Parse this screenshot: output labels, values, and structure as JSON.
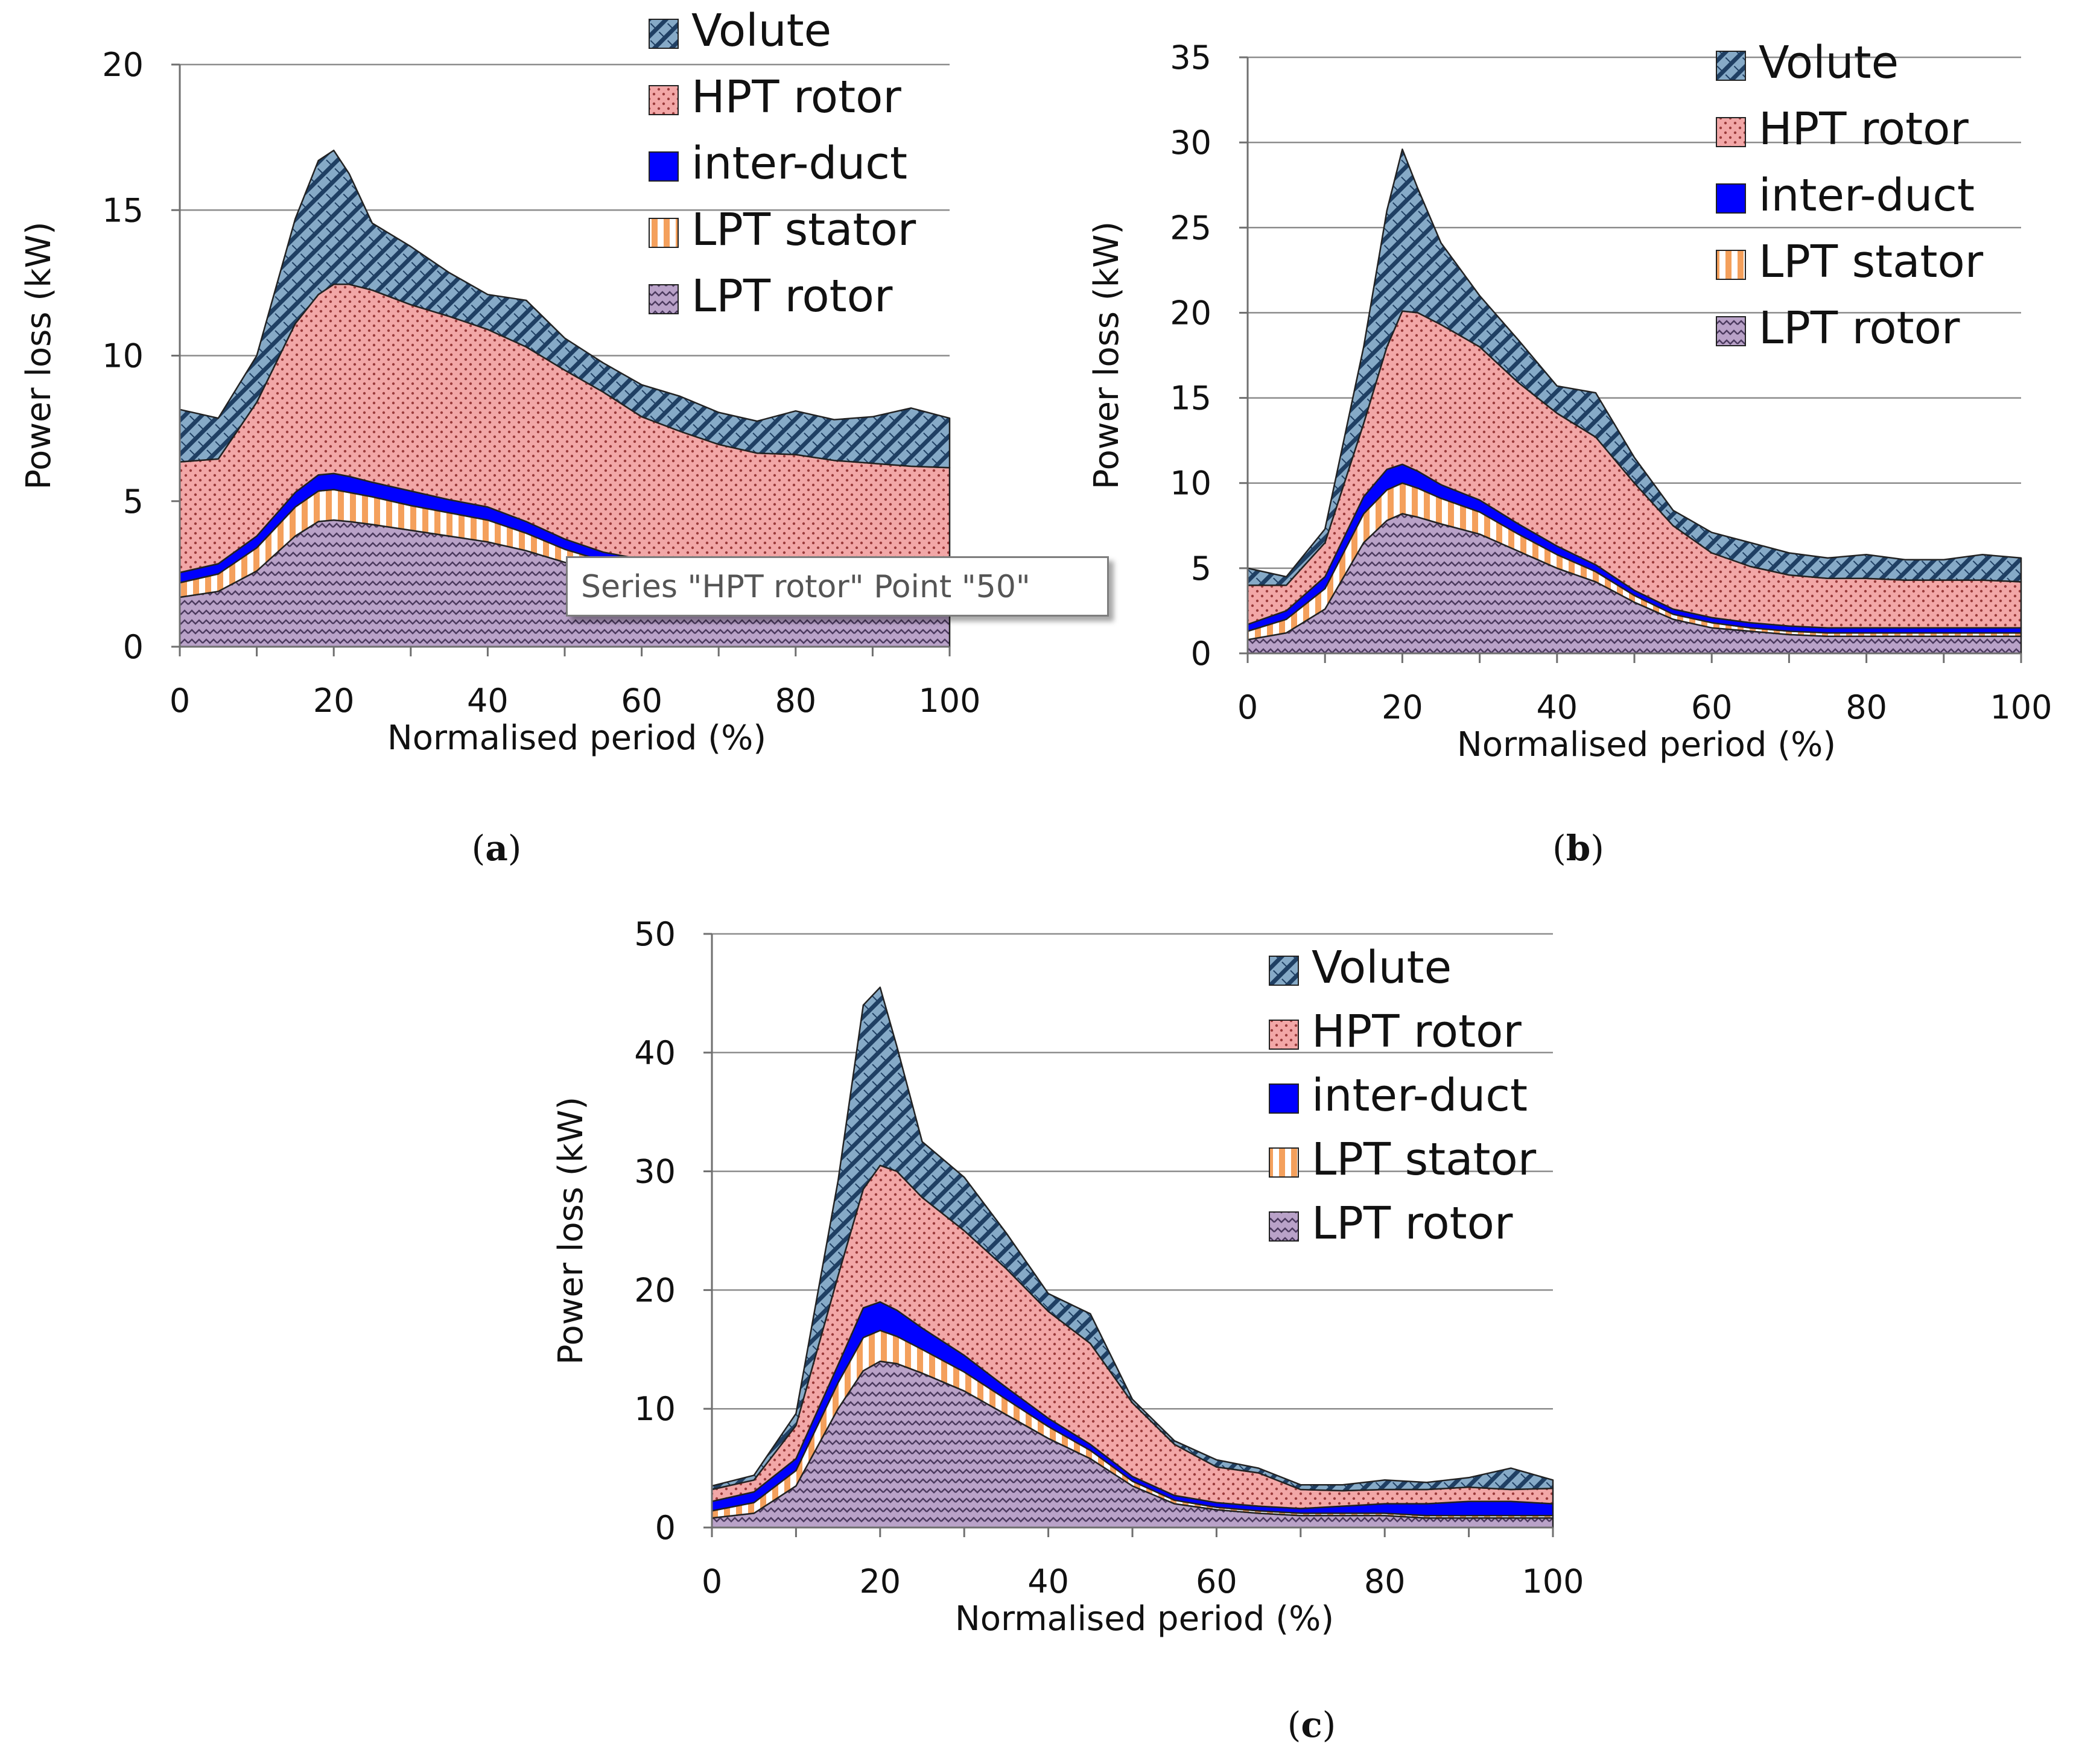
{
  "colors": {
    "volute": "#86aac7",
    "volute_hatch": "#1f3f63",
    "hpt_rotor": "#f2a7a7",
    "hpt_rotor_dots": "#9a3b3b",
    "inter_duct": "#0000ff",
    "lpt_stator_stripe": "#f4a05c",
    "lpt_stator_bg": "#ffffff",
    "lpt_rotor": "#b9a2c8",
    "lpt_rotor_wave": "#4b3a5e",
    "grid": "#8c8c8c",
    "axis": "#6f6f6f"
  },
  "icons": {
    "volute": "diagonal-hatch-swatch",
    "hpt_rotor": "dotted-swatch",
    "inter_duct": "solid-blue-swatch",
    "lpt_stator": "vertical-stripe-swatch",
    "lpt_rotor": "zigzag-swatch"
  },
  "tooltip": "Series \"HPT rotor\" Point \"50\"",
  "chart_data": [
    {
      "type": "area",
      "stacked": true,
      "caption_letter": "a",
      "caption_open": "(",
      "caption_close": ")",
      "xlabel": "Normalised period (%)",
      "ylabel": "Power loss (kW)",
      "xlim": [
        0,
        100
      ],
      "ylim": [
        0,
        20
      ],
      "xticks": [
        "0",
        "20",
        "40",
        "60",
        "80",
        "100"
      ],
      "yticks": [
        "0",
        "5",
        "10",
        "15",
        "20"
      ],
      "grid": "horizontal",
      "legend_position": "top-right",
      "x": [
        0,
        5,
        10,
        15,
        18,
        20,
        22,
        25,
        30,
        35,
        40,
        45,
        50,
        55,
        60,
        65,
        70,
        75,
        80,
        85,
        90,
        95,
        100
      ],
      "series": [
        {
          "name": "LPT rotor",
          "values": [
            1.7,
            1.9,
            2.6,
            3.8,
            4.3,
            4.35,
            4.3,
            4.2,
            4.0,
            3.8,
            3.6,
            3.3,
            2.9,
            2.6,
            2.4,
            2.3,
            2.2,
            2.1,
            2.1,
            2.0,
            2.0,
            2.0,
            2.0
          ]
        },
        {
          "name": "LPT stator",
          "values": [
            0.5,
            0.6,
            0.8,
            1.0,
            1.05,
            1.05,
            1.0,
            0.95,
            0.85,
            0.8,
            0.75,
            0.6,
            0.45,
            0.35,
            0.3,
            0.3,
            0.25,
            0.25,
            0.25,
            0.25,
            0.25,
            0.25,
            0.25
          ]
        },
        {
          "name": "inter-duct",
          "values": [
            0.35,
            0.35,
            0.4,
            0.5,
            0.55,
            0.55,
            0.55,
            0.5,
            0.5,
            0.45,
            0.45,
            0.4,
            0.35,
            0.3,
            0.3,
            0.3,
            0.3,
            0.3,
            0.3,
            0.3,
            0.3,
            0.3,
            0.3
          ]
        },
        {
          "name": "HPT rotor",
          "values": [
            3.8,
            3.6,
            4.6,
            5.8,
            6.2,
            6.5,
            6.6,
            6.6,
            6.4,
            6.3,
            6.1,
            6.0,
            5.8,
            5.5,
            4.9,
            4.5,
            4.2,
            4.0,
            3.95,
            3.85,
            3.75,
            3.65,
            3.6
          ]
        },
        {
          "name": "Volute",
          "values": [
            1.8,
            1.4,
            1.6,
            3.6,
            4.6,
            4.6,
            3.8,
            2.3,
            2.0,
            1.5,
            1.2,
            1.6,
            1.1,
            1.0,
            1.1,
            1.2,
            1.1,
            1.1,
            1.5,
            1.4,
            1.6,
            2.0,
            1.7
          ]
        }
      ]
    },
    {
      "type": "area",
      "stacked": true,
      "caption_letter": "b",
      "caption_open": "(",
      "caption_close": ")",
      "xlabel": "Normalised period (%)",
      "ylabel": "Power loss (kW)",
      "xlim": [
        0,
        100
      ],
      "ylim": [
        0,
        35
      ],
      "xticks": [
        "0",
        "20",
        "40",
        "60",
        "80",
        "100"
      ],
      "yticks": [
        "0",
        "5",
        "10",
        "15",
        "20",
        "25",
        "30",
        "35"
      ],
      "grid": "horizontal",
      "legend_position": "top-right",
      "x": [
        0,
        5,
        10,
        15,
        18,
        20,
        22,
        25,
        30,
        35,
        40,
        45,
        50,
        55,
        60,
        65,
        70,
        75,
        80,
        85,
        90,
        95,
        100
      ],
      "series": [
        {
          "name": "LPT rotor",
          "values": [
            0.8,
            1.2,
            2.6,
            6.5,
            7.8,
            8.2,
            8.0,
            7.6,
            7.0,
            6.0,
            5.0,
            4.2,
            3.0,
            2.0,
            1.5,
            1.3,
            1.1,
            1.0,
            1.0,
            1.0,
            1.0,
            1.0,
            1.0
          ]
        },
        {
          "name": "LPT stator",
          "values": [
            0.5,
            0.8,
            1.2,
            1.7,
            1.8,
            1.8,
            1.7,
            1.5,
            1.3,
            1.0,
            0.8,
            0.6,
            0.4,
            0.3,
            0.3,
            0.2,
            0.2,
            0.2,
            0.2,
            0.2,
            0.2,
            0.2,
            0.2
          ]
        },
        {
          "name": "inter-duct",
          "values": [
            0.4,
            0.5,
            0.7,
            1.0,
            1.2,
            1.1,
            1.0,
            0.8,
            0.7,
            0.6,
            0.5,
            0.4,
            0.3,
            0.3,
            0.3,
            0.3,
            0.3,
            0.3,
            0.3,
            0.3,
            0.3,
            0.3,
            0.3
          ]
        },
        {
          "name": "HPT rotor",
          "values": [
            2.3,
            1.5,
            2.0,
            4.3,
            7.2,
            9.0,
            9.3,
            9.4,
            9.0,
            8.3,
            7.8,
            7.5,
            6.3,
            4.9,
            3.8,
            3.3,
            3.0,
            2.9,
            2.9,
            2.8,
            2.8,
            2.8,
            2.7
          ]
        },
        {
          "name": "Volute",
          "values": [
            1.0,
            0.5,
            0.8,
            4.5,
            8.0,
            9.5,
            7.3,
            4.8,
            3.0,
            2.5,
            1.6,
            2.6,
            1.5,
            0.9,
            1.2,
            1.4,
            1.3,
            1.2,
            1.4,
            1.2,
            1.2,
            1.5,
            1.4
          ]
        }
      ]
    },
    {
      "type": "area",
      "stacked": true,
      "caption_letter": "c",
      "caption_open": "(",
      "caption_close": ")",
      "xlabel": "Normalised period (%)",
      "ylabel": "Power loss (kW)",
      "xlim": [
        0,
        100
      ],
      "ylim": [
        0,
        50
      ],
      "xticks": [
        "0",
        "20",
        "40",
        "60",
        "80",
        "100"
      ],
      "yticks": [
        "0",
        "10",
        "20",
        "30",
        "40",
        "50"
      ],
      "grid": "horizontal",
      "legend_position": "top-right",
      "x": [
        0,
        5,
        10,
        15,
        18,
        20,
        22,
        25,
        30,
        35,
        40,
        45,
        50,
        55,
        60,
        65,
        70,
        75,
        80,
        85,
        90,
        95,
        100
      ],
      "series": [
        {
          "name": "LPT rotor",
          "values": [
            0.8,
            1.2,
            3.5,
            10.0,
            13.2,
            14.0,
            13.8,
            13.0,
            11.5,
            9.5,
            7.5,
            5.8,
            3.5,
            2.0,
            1.5,
            1.2,
            1.0,
            1.0,
            1.0,
            0.8,
            0.8,
            0.8,
            0.8
          ]
        },
        {
          "name": "LPT stator",
          "values": [
            0.6,
            0.9,
            1.3,
            2.2,
            2.8,
            2.6,
            2.3,
            2.0,
            1.6,
            1.3,
            1.0,
            0.7,
            0.4,
            0.3,
            0.2,
            0.2,
            0.2,
            0.2,
            0.2,
            0.2,
            0.2,
            0.2,
            0.2
          ]
        },
        {
          "name": "inter-duct",
          "values": [
            0.8,
            0.9,
            1.0,
            1.5,
            2.5,
            2.4,
            2.2,
            1.8,
            1.4,
            1.0,
            0.7,
            0.5,
            0.4,
            0.4,
            0.4,
            0.4,
            0.4,
            0.6,
            0.8,
            1.0,
            1.2,
            1.2,
            1.0
          ]
        },
        {
          "name": "HPT rotor",
          "values": [
            1.0,
            1.0,
            2.8,
            7.5,
            10.0,
            11.5,
            11.7,
            11.0,
            10.5,
            10.0,
            9.0,
            8.5,
            6.2,
            4.3,
            3.0,
            2.8,
            1.6,
            1.3,
            1.2,
            1.2,
            1.2,
            1.0,
            1.3
          ]
        },
        {
          "name": "Volute",
          "values": [
            0.3,
            0.4,
            1.0,
            8.0,
            15.5,
            15.0,
            10.5,
            4.7,
            4.5,
            3.0,
            1.5,
            2.5,
            0.3,
            0.3,
            0.6,
            0.4,
            0.4,
            0.5,
            0.8,
            0.6,
            0.8,
            1.8,
            0.7
          ]
        }
      ]
    }
  ]
}
